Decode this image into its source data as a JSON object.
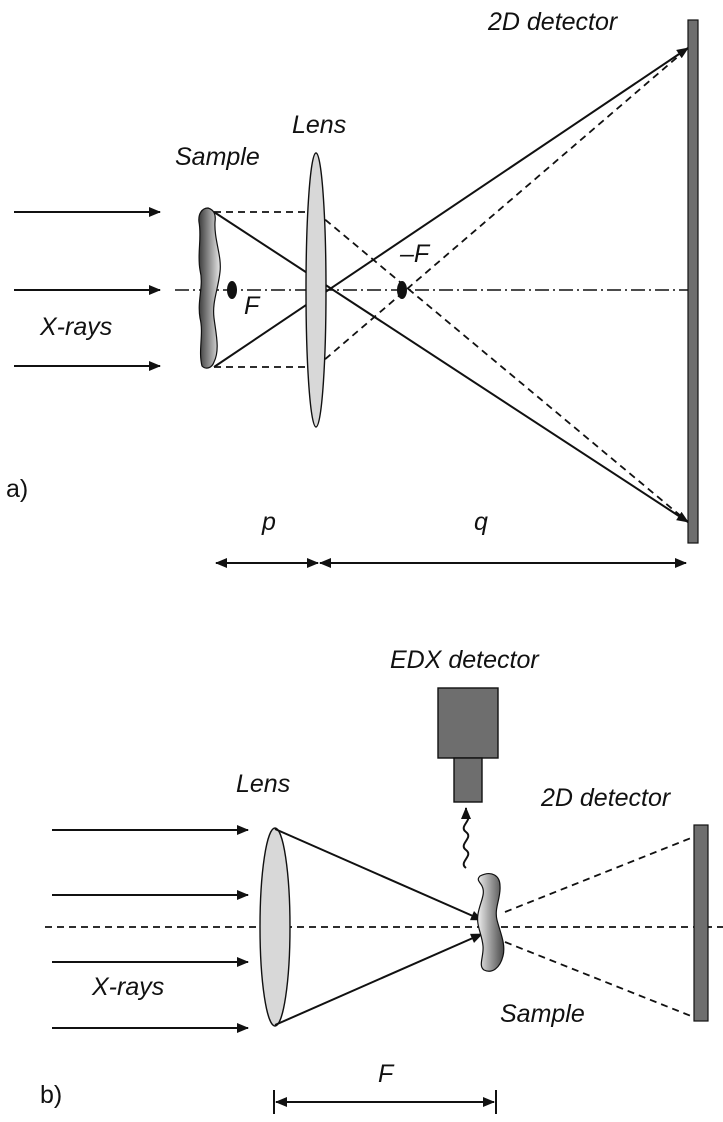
{
  "panel_a": {
    "panel_label": "a)",
    "detector_label": "2D detector",
    "lens_label": "Lens",
    "sample_label": "Sample",
    "focus_label": "F",
    "neg_focus_label": "–F",
    "xrays_label": "X-rays",
    "p_label": "p",
    "q_label": "q"
  },
  "panel_b": {
    "panel_label": "b)",
    "edx_label": "EDX detector",
    "lens_label": "Lens",
    "detector_label": "2D detector",
    "xrays_label": "X-rays",
    "sample_label": "Sample",
    "focal_label": "F"
  },
  "colors": {
    "detector_fill": "#6e6e6e",
    "lens_fill": "#d8d8d8",
    "sample_dark": "#4a4a4a",
    "sample_light": "#e6e6e6"
  }
}
